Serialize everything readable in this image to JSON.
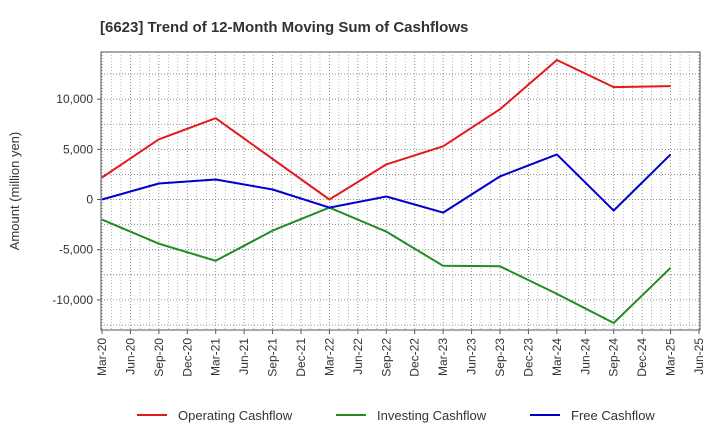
{
  "chart_data": {
    "type": "line",
    "title": "[6623]  Trend of 12-Month Moving Sum of Cashflows",
    "xlabel": "",
    "ylabel": "Amount (million yen)",
    "x_ticks": [
      "Mar-20",
      "Jun-20",
      "Sep-20",
      "Dec-20",
      "Mar-21",
      "Jun-21",
      "Sep-21",
      "Dec-21",
      "Mar-22",
      "Jun-22",
      "Sep-22",
      "Dec-22",
      "Mar-23",
      "Jun-23",
      "Sep-23",
      "Dec-23",
      "Mar-24",
      "Jun-24",
      "Sep-24",
      "Dec-24",
      "Mar-25",
      "Jun-25"
    ],
    "y_ticks": [
      -10000,
      -5000,
      0,
      5000,
      10000
    ],
    "y_tick_labels": [
      "-10,000",
      "-5,000",
      "0",
      "5,000",
      "10,000"
    ],
    "ylim": [
      -13000,
      14700
    ],
    "grid": true,
    "legend_position": "bottom",
    "series": [
      {
        "name": "Operating Cashflow",
        "color": "#e31a1c",
        "x": [
          "Mar-20",
          "Sep-20",
          "Mar-21",
          "Mar-22",
          "Sep-22",
          "Mar-23",
          "Sep-23",
          "Mar-24",
          "Sep-24",
          "Mar-25"
        ],
        "values": [
          2200,
          6000,
          8100,
          0,
          3500,
          5300,
          9000,
          13900,
          11200,
          11300
        ]
      },
      {
        "name": "Investing Cashflow",
        "color": "#228b22",
        "x": [
          "Mar-20",
          "Sep-20",
          "Mar-21",
          "Sep-21",
          "Mar-22",
          "Sep-22",
          "Mar-23",
          "Sep-23",
          "Mar-24",
          "Sep-24",
          "Mar-25"
        ],
        "values": [
          -2000,
          -4400,
          -6100,
          -3100,
          -800,
          -3200,
          -6600,
          -6650,
          -9400,
          -12300,
          -6800
        ]
      },
      {
        "name": "Free Cashflow",
        "color": "#0000cd",
        "x": [
          "Mar-20",
          "Sep-20",
          "Mar-21",
          "Sep-21",
          "Mar-22",
          "Sep-22",
          "Mar-23",
          "Sep-23",
          "Mar-24",
          "Sep-24",
          "Mar-25"
        ],
        "values": [
          0,
          1600,
          2000,
          1000,
          -800,
          300,
          -1300,
          2300,
          4500,
          -1100,
          4500
        ]
      }
    ]
  }
}
